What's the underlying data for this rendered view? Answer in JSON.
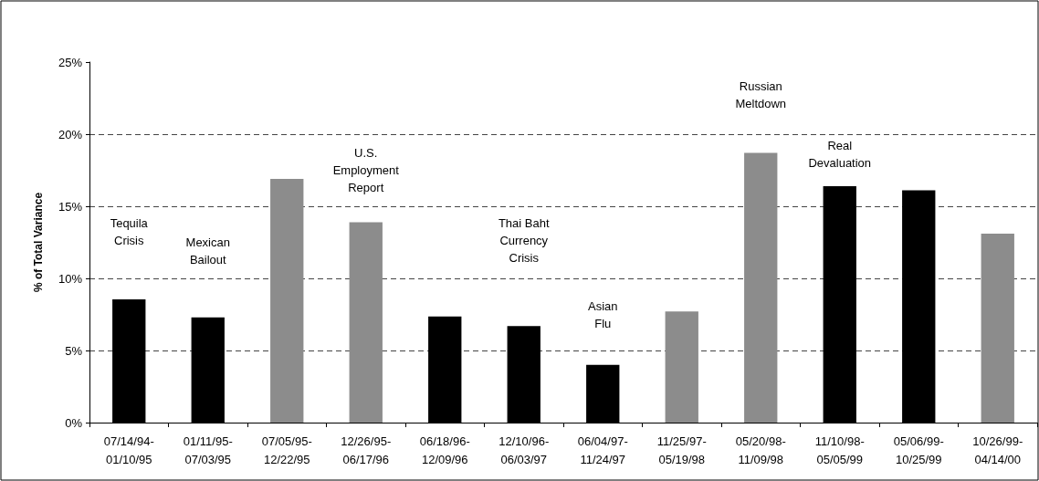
{
  "chart_data": {
    "type": "bar",
    "ylabel": "% of Total Variance",
    "categories": [
      "07/14/94-\n01/10/95",
      "01/11/95-\n07/03/95",
      "07/05/95-\n12/22/95",
      "12/26/95-\n06/17/96",
      "06/18/96-\n12/09/96",
      "12/10/96-\n06/03/97",
      "06/04/97-\n11/24/97",
      "11/25/97-\n05/19/98",
      "05/20/98-\n11/09/98",
      "11/10/98-\n05/05/99",
      "05/06/99-\n10/25/99",
      "10/26/99-\n04/14/00"
    ],
    "values": [
      8.55,
      7.3,
      16.9,
      13.9,
      7.35,
      6.7,
      4.0,
      7.7,
      18.7,
      16.4,
      16.1,
      13.1
    ],
    "colors": [
      "#000000",
      "#000000",
      "#8c8c8c",
      "#8c8c8c",
      "#000000",
      "#000000",
      "#000000",
      "#8c8c8c",
      "#8c8c8c",
      "#000000",
      "#000000",
      "#8c8c8c"
    ],
    "ylim": [
      0,
      25
    ],
    "yticks": [
      {
        "value": 0,
        "label": "0%"
      },
      {
        "value": 5,
        "label": "5%"
      },
      {
        "value": 10,
        "label": "10%"
      },
      {
        "value": 15,
        "label": "15%"
      },
      {
        "value": 20,
        "label": "20%"
      },
      {
        "value": 25,
        "label": "25%"
      }
    ],
    "grid": "y",
    "annotations": [
      "Tequila\nCrisis",
      "Mexican\nBailout",
      "U.S.\nEmployment\nReport",
      "Thai Baht\nCurrency\nCrisis",
      "Asian\nFlu",
      "Russian\nMeltdown",
      "Real\nDevaluation"
    ]
  }
}
